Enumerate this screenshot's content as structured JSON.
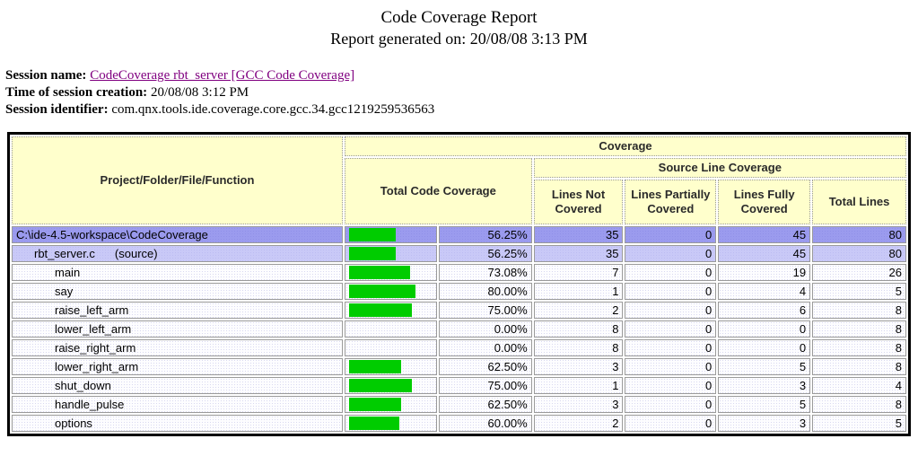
{
  "page": {
    "title": "Code Coverage Report",
    "subtitle": "Report generated on: 20/08/08 3:13 PM"
  },
  "session": {
    "name_label": "Session name:",
    "name_link": "CodeCoverage rbt_server [GCC Code Coverage]",
    "time_label": "Time of session creation:",
    "time_value": "20/08/08 3:12 PM",
    "id_label": "Session identifier:",
    "id_value": "com.qnx.tools.ide.coverage.core.gcc.34.gcc1219259536563"
  },
  "colors": {
    "link": "#800080",
    "header_bg": "#ffffcc",
    "project_row_bg": "#9b9bee",
    "file_row_bg": "#c9c9f7",
    "function_row_bg": "#ededf9",
    "bar_fill": "#00cc00",
    "table_border": "#000000"
  },
  "table": {
    "headers": {
      "project": "Project/Folder/File/Function",
      "coverage": "Coverage",
      "total_code_coverage": "Total Code Coverage",
      "source_line_coverage": "Source Line Coverage",
      "lines_not_covered": "Lines Not Covered",
      "lines_partially_covered": "Lines Partially Covered",
      "lines_fully_covered": "Lines Fully Covered",
      "total_lines": "Total Lines"
    },
    "rows": [
      {
        "label": "C:\\ide-4.5-workspace\\CodeCoverage",
        "suffix": "",
        "level": "project",
        "coverage_pct": 56.25,
        "coverage_text": "56.25%",
        "lines_not_covered": 35,
        "lines_partially_covered": 0,
        "lines_fully_covered": 45,
        "total_lines": 80
      },
      {
        "label": "rbt_server.c",
        "suffix": "(source)",
        "level": "file",
        "coverage_pct": 56.25,
        "coverage_text": "56.25%",
        "lines_not_covered": 35,
        "lines_partially_covered": 0,
        "lines_fully_covered": 45,
        "total_lines": 80
      },
      {
        "label": "main",
        "suffix": "",
        "level": "func",
        "coverage_pct": 73.08,
        "coverage_text": "73.08%",
        "lines_not_covered": 7,
        "lines_partially_covered": 0,
        "lines_fully_covered": 19,
        "total_lines": 26
      },
      {
        "label": "say",
        "suffix": "",
        "level": "func",
        "coverage_pct": 80,
        "coverage_text": "80.00%",
        "lines_not_covered": 1,
        "lines_partially_covered": 0,
        "lines_fully_covered": 4,
        "total_lines": 5
      },
      {
        "label": "raise_left_arm",
        "suffix": "",
        "level": "func",
        "coverage_pct": 75,
        "coverage_text": "75.00%",
        "lines_not_covered": 2,
        "lines_partially_covered": 0,
        "lines_fully_covered": 6,
        "total_lines": 8
      },
      {
        "label": "lower_left_arm",
        "suffix": "",
        "level": "func",
        "coverage_pct": 0,
        "coverage_text": "0.00%",
        "lines_not_covered": 8,
        "lines_partially_covered": 0,
        "lines_fully_covered": 0,
        "total_lines": 8
      },
      {
        "label": "raise_right_arm",
        "suffix": "",
        "level": "func",
        "coverage_pct": 0,
        "coverage_text": "0.00%",
        "lines_not_covered": 8,
        "lines_partially_covered": 0,
        "lines_fully_covered": 0,
        "total_lines": 8
      },
      {
        "label": "lower_right_arm",
        "suffix": "",
        "level": "func",
        "coverage_pct": 62.5,
        "coverage_text": "62.50%",
        "lines_not_covered": 3,
        "lines_partially_covered": 0,
        "lines_fully_covered": 5,
        "total_lines": 8
      },
      {
        "label": "shut_down",
        "suffix": "",
        "level": "func",
        "coverage_pct": 75,
        "coverage_text": "75.00%",
        "lines_not_covered": 1,
        "lines_partially_covered": 0,
        "lines_fully_covered": 3,
        "total_lines": 4
      },
      {
        "label": "handle_pulse",
        "suffix": "",
        "level": "func",
        "coverage_pct": 62.5,
        "coverage_text": "62.50%",
        "lines_not_covered": 3,
        "lines_partially_covered": 0,
        "lines_fully_covered": 5,
        "total_lines": 8
      },
      {
        "label": "options",
        "suffix": "",
        "level": "func",
        "coverage_pct": 60,
        "coverage_text": "60.00%",
        "lines_not_covered": 2,
        "lines_partially_covered": 0,
        "lines_fully_covered": 3,
        "total_lines": 5
      }
    ]
  }
}
